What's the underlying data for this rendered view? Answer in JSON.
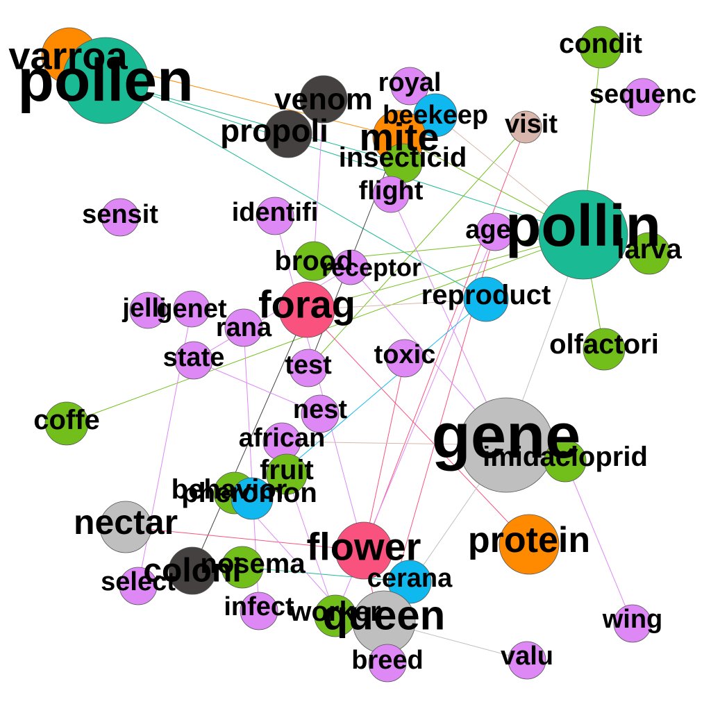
{
  "colors": {
    "violet": "#dd88f5",
    "green": "#72bf1c",
    "teal": "#1aba95",
    "orange": "#ff8a00",
    "blue": "#0fb8ee",
    "gray": "#bfbfbf",
    "dark": "#454140",
    "pink": "#fa527f",
    "tan": "#d8b6ab"
  },
  "nodes": [
    {
      "id": "varroa",
      "label": "varroa",
      "group": "orange"
    },
    {
      "id": "pollen",
      "label": "pollen",
      "group": "teal"
    },
    {
      "id": "condit",
      "label": "condit",
      "group": "green"
    },
    {
      "id": "sequenc",
      "label": "sequenc",
      "group": "violet"
    },
    {
      "id": "royal",
      "label": "royal",
      "group": "violet"
    },
    {
      "id": "venom",
      "label": "venom",
      "group": "dark"
    },
    {
      "id": "beekeep",
      "label": "beekeep",
      "group": "blue"
    },
    {
      "id": "visit",
      "label": "visit",
      "group": "tan"
    },
    {
      "id": "propoli",
      "label": "propoli",
      "group": "dark"
    },
    {
      "id": "mite",
      "label": "mite",
      "group": "orange"
    },
    {
      "id": "insecticid",
      "label": "insecticid",
      "group": "green"
    },
    {
      "id": "flight",
      "label": "flight",
      "group": "violet"
    },
    {
      "id": "sensit",
      "label": "sensit",
      "group": "violet"
    },
    {
      "id": "identifi",
      "label": "identifi",
      "group": "violet"
    },
    {
      "id": "pollin",
      "label": "pollin",
      "group": "teal"
    },
    {
      "id": "age",
      "label": "age",
      "group": "violet"
    },
    {
      "id": "larva",
      "label": "larva",
      "group": "green"
    },
    {
      "id": "brood",
      "label": "brood",
      "group": "green"
    },
    {
      "id": "receptor",
      "label": "receptor",
      "group": "violet"
    },
    {
      "id": "forag",
      "label": "forag",
      "group": "pink"
    },
    {
      "id": "reproduct",
      "label": "reproduct",
      "group": "blue"
    },
    {
      "id": "jelli",
      "label": "jelli",
      "group": "violet"
    },
    {
      "id": "genet",
      "label": "genet",
      "group": "violet"
    },
    {
      "id": "rana",
      "label": "rana",
      "group": "violet"
    },
    {
      "id": "olfactori",
      "label": "olfactori",
      "group": "green"
    },
    {
      "id": "state",
      "label": "state",
      "group": "violet"
    },
    {
      "id": "test",
      "label": "test",
      "group": "violet"
    },
    {
      "id": "toxic",
      "label": "toxic",
      "group": "violet"
    },
    {
      "id": "coffe",
      "label": "coffe",
      "group": "green"
    },
    {
      "id": "nest",
      "label": "nest",
      "group": "violet"
    },
    {
      "id": "gene",
      "label": "gene",
      "group": "gray"
    },
    {
      "id": "african",
      "label": "african",
      "group": "violet"
    },
    {
      "id": "imidacloprid",
      "label": "imidacloprid",
      "group": "green"
    },
    {
      "id": "fruit",
      "label": "fruit",
      "group": "green"
    },
    {
      "id": "behavior",
      "label": "behavior",
      "group": "green"
    },
    {
      "id": "pheromon",
      "label": "pheromon",
      "group": "blue"
    },
    {
      "id": "nectar",
      "label": "nectar",
      "group": "gray"
    },
    {
      "id": "protein",
      "label": "protein",
      "group": "orange"
    },
    {
      "id": "flower",
      "label": "flower",
      "group": "pink"
    },
    {
      "id": "coloni",
      "label": "coloni",
      "group": "dark"
    },
    {
      "id": "nosema",
      "label": "nosema",
      "group": "green"
    },
    {
      "id": "select",
      "label": "select",
      "group": "violet"
    },
    {
      "id": "cerana",
      "label": "cerana",
      "group": "blue"
    },
    {
      "id": "infect",
      "label": "infect",
      "group": "violet"
    },
    {
      "id": "worker",
      "label": "worker",
      "group": "green"
    },
    {
      "id": "queen",
      "label": "queen",
      "group": "gray"
    },
    {
      "id": "wing",
      "label": "wing",
      "group": "violet"
    },
    {
      "id": "breed",
      "label": "breed",
      "group": "violet"
    },
    {
      "id": "valu",
      "label": "valu",
      "group": "violet"
    }
  ],
  "edges": [
    {
      "source": "varroa",
      "target": "mite",
      "color": "orange"
    },
    {
      "source": "pollen",
      "target": "pollin",
      "color": "teal"
    },
    {
      "source": "pollen",
      "target": "reproduct",
      "color": "teal"
    },
    {
      "source": "pollen",
      "target": "insecticid",
      "color": "teal"
    },
    {
      "source": "condit",
      "target": "pollin",
      "color": "green"
    },
    {
      "source": "pollin",
      "target": "olfactori",
      "color": "green"
    },
    {
      "source": "pollin",
      "target": "gene",
      "color": "gray"
    },
    {
      "source": "pollin",
      "target": "coffe",
      "color": "green"
    },
    {
      "source": "pollin",
      "target": "forag",
      "color": "green"
    },
    {
      "source": "pollin",
      "target": "brood",
      "color": "green"
    },
    {
      "source": "pollin",
      "target": "mite",
      "color": "green"
    },
    {
      "source": "visit",
      "target": "flower",
      "color": "pink"
    },
    {
      "source": "visit",
      "target": "test",
      "color": "green"
    },
    {
      "source": "beekeep",
      "target": "pollin",
      "color": "tan"
    },
    {
      "source": "mite",
      "target": "test",
      "color": "dark"
    },
    {
      "source": "venom",
      "target": "brood",
      "color": "violet"
    },
    {
      "source": "flight",
      "target": "gene",
      "color": "violet"
    },
    {
      "source": "age",
      "target": "worker",
      "color": "violet"
    },
    {
      "source": "age",
      "target": "queen",
      "color": "pink"
    },
    {
      "source": "receptor",
      "target": "state",
      "color": "violet"
    },
    {
      "source": "receptor",
      "target": "gene",
      "color": "violet"
    },
    {
      "source": "forag",
      "target": "reproduct",
      "color": "tan"
    },
    {
      "source": "forag",
      "target": "coloni",
      "color": "dark"
    },
    {
      "source": "forag",
      "target": "protein",
      "color": "pink"
    },
    {
      "source": "identifi",
      "target": "flower",
      "color": "violet"
    },
    {
      "source": "genet",
      "target": "select",
      "color": "violet"
    },
    {
      "source": "rana",
      "target": "infect",
      "color": "violet"
    },
    {
      "source": "reproduct",
      "target": "pheromon",
      "color": "blue"
    },
    {
      "source": "toxic",
      "target": "flower",
      "color": "pink"
    },
    {
      "source": "african",
      "target": "gene",
      "color": "tan"
    },
    {
      "source": "gene",
      "target": "queen",
      "color": "gray"
    },
    {
      "source": "imidacloprid",
      "target": "wing",
      "color": "violet"
    },
    {
      "source": "nectar",
      "target": "flower",
      "color": "pink"
    },
    {
      "source": "coloni",
      "target": "nosema",
      "color": "teal"
    },
    {
      "source": "nosema",
      "target": "cerana",
      "color": "teal"
    },
    {
      "source": "fruit",
      "target": "worker",
      "color": "violet"
    },
    {
      "source": "behavior",
      "target": "breed",
      "color": "violet"
    },
    {
      "source": "queen",
      "target": "valu",
      "color": "gray"
    },
    {
      "source": "state",
      "target": "nest",
      "color": "violet"
    },
    {
      "source": "flower",
      "target": "breed",
      "color": "pink"
    }
  ]
}
